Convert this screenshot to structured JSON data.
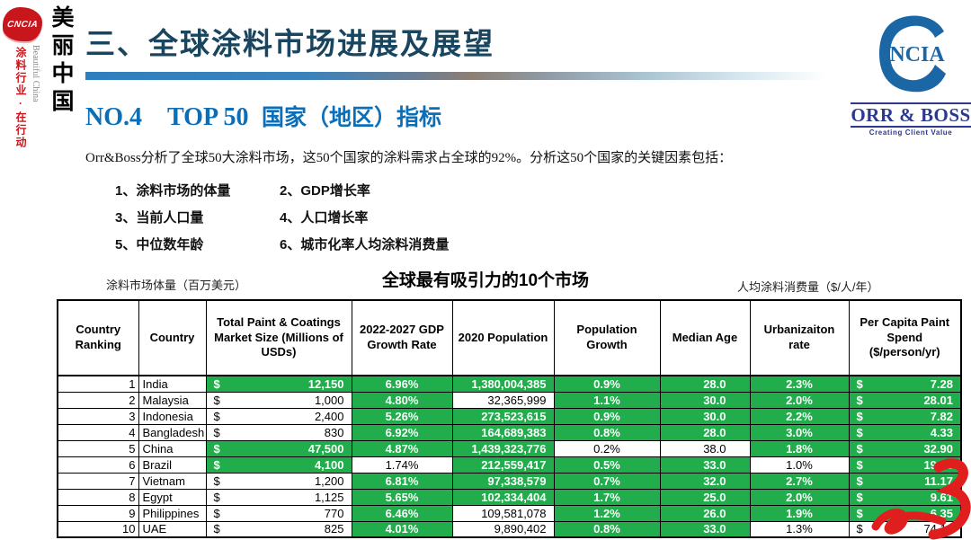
{
  "branding_left": {
    "seal_text": "CNCIA",
    "tagline_cn": "涂料行业·在行动",
    "tagline_en": "Beautiful China",
    "big_text": "美丽中国"
  },
  "header": {
    "section_title": "三、全球涂料市场进展及展望",
    "subtitle_prefix": "NO.4　TOP 50",
    "subtitle_suffix": "国家（地区）指标"
  },
  "logo_right": {
    "c_inner": "NCIA",
    "name": "ORR & BOSS",
    "tagline": "Creating Client Value"
  },
  "intro": {
    "paragraph": "Orr&Boss分析了全球50大涂料市场，这50个国家的涂料需求占全球的92%。分析这50个国家的关键因素包括：",
    "factors": [
      [
        "1、涂料市场的体量",
        "2、GDP增长率"
      ],
      [
        "3、当前人口量",
        "4、人口增长率"
      ],
      [
        "5、中位数年龄",
        "6、城市化率人均涂料消费量"
      ]
    ]
  },
  "table_section": {
    "left_label": "涂料市场体量（百万美元）",
    "title": "全球最有吸引力的10个市场",
    "right_label": "人均涂料消费量（$/人/年）"
  },
  "colors": {
    "green_cell": "#21ad4b",
    "title_dark": "#19455e",
    "subtitle_blue": "#0a6fb8",
    "logo_blue": "#1b67a5",
    "orrboss_blue": "#2b3990",
    "seal_red": "#c8161d",
    "watermark_red": "#e01e1e"
  },
  "table": {
    "headers": [
      "Country Ranking",
      "Country",
      "Total Paint & Coatings Market Size (Millions of USDs)",
      "2022-2027 GDP Growth Rate",
      "2020 Population",
      "Population Growth",
      "Median Age",
      "Urbanizaiton rate",
      "Per Capita Paint Spend ($/person/yr)"
    ],
    "rows": [
      {
        "rank": "1",
        "country": "India",
        "market": "12,150",
        "market_green": true,
        "gdp": "6.96%",
        "gdp_green": true,
        "pop": "1,380,004,385",
        "pop_green": true,
        "growth": "0.9%",
        "growth_green": true,
        "age": "28.0",
        "age_green": true,
        "urban": "2.3%",
        "urban_green": true,
        "spend": "7.28",
        "spend_green": true
      },
      {
        "rank": "2",
        "country": "Malaysia",
        "market": "1,000",
        "market_green": false,
        "gdp": "4.80%",
        "gdp_green": true,
        "pop": "32,365,999",
        "pop_green": false,
        "growth": "1.1%",
        "growth_green": true,
        "age": "30.0",
        "age_green": true,
        "urban": "2.0%",
        "urban_green": true,
        "spend": "28.01",
        "spend_green": true
      },
      {
        "rank": "3",
        "country": "Indonesia",
        "market": "2,400",
        "market_green": false,
        "gdp": "5.26%",
        "gdp_green": true,
        "pop": "273,523,615",
        "pop_green": true,
        "growth": "0.9%",
        "growth_green": true,
        "age": "30.0",
        "age_green": true,
        "urban": "2.2%",
        "urban_green": true,
        "spend": "7.82",
        "spend_green": true
      },
      {
        "rank": "4",
        "country": "Bangladesh",
        "market": "830",
        "market_green": false,
        "gdp": "6.92%",
        "gdp_green": true,
        "pop": "164,689,383",
        "pop_green": true,
        "growth": "0.8%",
        "growth_green": true,
        "age": "28.0",
        "age_green": true,
        "urban": "3.0%",
        "urban_green": true,
        "spend": "4.33",
        "spend_green": true
      },
      {
        "rank": "5",
        "country": "China",
        "market": "47,500",
        "market_green": true,
        "gdp": "4.87%",
        "gdp_green": true,
        "pop": "1,439,323,776",
        "pop_green": true,
        "growth": "0.2%",
        "growth_green": false,
        "age": "38.0",
        "age_green": false,
        "urban": "1.8%",
        "urban_green": true,
        "spend": "32.90",
        "spend_green": true
      },
      {
        "rank": "6",
        "country": "Brazil",
        "market": "4,100",
        "market_green": true,
        "gdp": "1.74%",
        "gdp_green": false,
        "pop": "212,559,417",
        "pop_green": true,
        "growth": "0.5%",
        "growth_green": true,
        "age": "33.0",
        "age_green": true,
        "urban": "1.0%",
        "urban_green": false,
        "spend": "19.16",
        "spend_green": true
      },
      {
        "rank": "7",
        "country": "Vietnam",
        "market": "1,200",
        "market_green": false,
        "gdp": "6.81%",
        "gdp_green": true,
        "pop": "97,338,579",
        "pop_green": true,
        "growth": "0.7%",
        "growth_green": true,
        "age": "32.0",
        "age_green": true,
        "urban": "2.7%",
        "urban_green": true,
        "spend": "11.17",
        "spend_green": true
      },
      {
        "rank": "8",
        "country": "Egypt",
        "market": "1,125",
        "market_green": false,
        "gdp": "5.65%",
        "gdp_green": true,
        "pop": "102,334,404",
        "pop_green": true,
        "growth": "1.7%",
        "growth_green": true,
        "age": "25.0",
        "age_green": true,
        "urban": "2.0%",
        "urban_green": true,
        "spend": "9.61",
        "spend_green": true
      },
      {
        "rank": "9",
        "country": "Philippines",
        "market": "770",
        "market_green": false,
        "gdp": "6.46%",
        "gdp_green": true,
        "pop": "109,581,078",
        "pop_green": false,
        "growth": "1.2%",
        "growth_green": true,
        "age": "26.0",
        "age_green": true,
        "urban": "1.9%",
        "urban_green": true,
        "spend": "6.35",
        "spend_green": true
      },
      {
        "rank": "10",
        "country": "UAE",
        "market": "825",
        "market_green": false,
        "gdp": "4.01%",
        "gdp_green": true,
        "pop": "9,890,402",
        "pop_green": false,
        "growth": "0.8%",
        "growth_green": true,
        "age": "33.0",
        "age_green": true,
        "urban": "1.3%",
        "urban_green": false,
        "spend": "74.12",
        "spend_green": false
      }
    ]
  }
}
